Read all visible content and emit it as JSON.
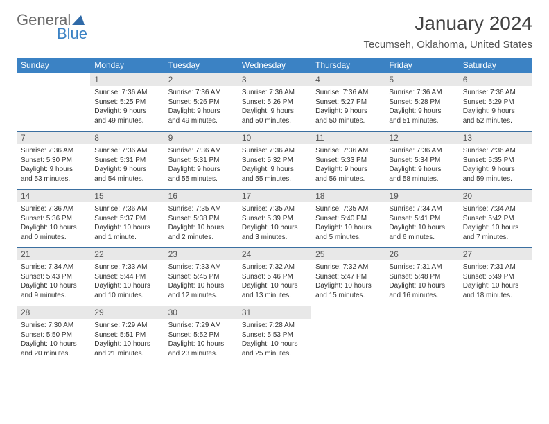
{
  "logo": {
    "text_top": "General",
    "text_bottom": "Blue"
  },
  "title": "January 2024",
  "location": "Tecumseh, Oklahoma, United States",
  "colors": {
    "header_bg": "#3b82c4",
    "header_fg": "#ffffff",
    "daynum_bg": "#e8e8e8",
    "row_border": "#3b6fa0",
    "logo_gray": "#6b6b6b",
    "logo_blue": "#3b82c4",
    "page_bg": "#ffffff"
  },
  "typography": {
    "title_fontsize": 28,
    "location_fontsize": 15,
    "weekday_fontsize": 12,
    "daynum_fontsize": 12,
    "body_fontsize": 10
  },
  "weekdays": [
    "Sunday",
    "Monday",
    "Tuesday",
    "Wednesday",
    "Thursday",
    "Friday",
    "Saturday"
  ],
  "weeks": [
    [
      {
        "day": "",
        "sunrise": "",
        "sunset": "",
        "daylight": ""
      },
      {
        "day": "1",
        "sunrise": "Sunrise: 7:36 AM",
        "sunset": "Sunset: 5:25 PM",
        "daylight": "Daylight: 9 hours and 49 minutes."
      },
      {
        "day": "2",
        "sunrise": "Sunrise: 7:36 AM",
        "sunset": "Sunset: 5:26 PM",
        "daylight": "Daylight: 9 hours and 49 minutes."
      },
      {
        "day": "3",
        "sunrise": "Sunrise: 7:36 AM",
        "sunset": "Sunset: 5:26 PM",
        "daylight": "Daylight: 9 hours and 50 minutes."
      },
      {
        "day": "4",
        "sunrise": "Sunrise: 7:36 AM",
        "sunset": "Sunset: 5:27 PM",
        "daylight": "Daylight: 9 hours and 50 minutes."
      },
      {
        "day": "5",
        "sunrise": "Sunrise: 7:36 AM",
        "sunset": "Sunset: 5:28 PM",
        "daylight": "Daylight: 9 hours and 51 minutes."
      },
      {
        "day": "6",
        "sunrise": "Sunrise: 7:36 AM",
        "sunset": "Sunset: 5:29 PM",
        "daylight": "Daylight: 9 hours and 52 minutes."
      }
    ],
    [
      {
        "day": "7",
        "sunrise": "Sunrise: 7:36 AM",
        "sunset": "Sunset: 5:30 PM",
        "daylight": "Daylight: 9 hours and 53 minutes."
      },
      {
        "day": "8",
        "sunrise": "Sunrise: 7:36 AM",
        "sunset": "Sunset: 5:31 PM",
        "daylight": "Daylight: 9 hours and 54 minutes."
      },
      {
        "day": "9",
        "sunrise": "Sunrise: 7:36 AM",
        "sunset": "Sunset: 5:31 PM",
        "daylight": "Daylight: 9 hours and 55 minutes."
      },
      {
        "day": "10",
        "sunrise": "Sunrise: 7:36 AM",
        "sunset": "Sunset: 5:32 PM",
        "daylight": "Daylight: 9 hours and 55 minutes."
      },
      {
        "day": "11",
        "sunrise": "Sunrise: 7:36 AM",
        "sunset": "Sunset: 5:33 PM",
        "daylight": "Daylight: 9 hours and 56 minutes."
      },
      {
        "day": "12",
        "sunrise": "Sunrise: 7:36 AM",
        "sunset": "Sunset: 5:34 PM",
        "daylight": "Daylight: 9 hours and 58 minutes."
      },
      {
        "day": "13",
        "sunrise": "Sunrise: 7:36 AM",
        "sunset": "Sunset: 5:35 PM",
        "daylight": "Daylight: 9 hours and 59 minutes."
      }
    ],
    [
      {
        "day": "14",
        "sunrise": "Sunrise: 7:36 AM",
        "sunset": "Sunset: 5:36 PM",
        "daylight": "Daylight: 10 hours and 0 minutes."
      },
      {
        "day": "15",
        "sunrise": "Sunrise: 7:36 AM",
        "sunset": "Sunset: 5:37 PM",
        "daylight": "Daylight: 10 hours and 1 minute."
      },
      {
        "day": "16",
        "sunrise": "Sunrise: 7:35 AM",
        "sunset": "Sunset: 5:38 PM",
        "daylight": "Daylight: 10 hours and 2 minutes."
      },
      {
        "day": "17",
        "sunrise": "Sunrise: 7:35 AM",
        "sunset": "Sunset: 5:39 PM",
        "daylight": "Daylight: 10 hours and 3 minutes."
      },
      {
        "day": "18",
        "sunrise": "Sunrise: 7:35 AM",
        "sunset": "Sunset: 5:40 PM",
        "daylight": "Daylight: 10 hours and 5 minutes."
      },
      {
        "day": "19",
        "sunrise": "Sunrise: 7:34 AM",
        "sunset": "Sunset: 5:41 PM",
        "daylight": "Daylight: 10 hours and 6 minutes."
      },
      {
        "day": "20",
        "sunrise": "Sunrise: 7:34 AM",
        "sunset": "Sunset: 5:42 PM",
        "daylight": "Daylight: 10 hours and 7 minutes."
      }
    ],
    [
      {
        "day": "21",
        "sunrise": "Sunrise: 7:34 AM",
        "sunset": "Sunset: 5:43 PM",
        "daylight": "Daylight: 10 hours and 9 minutes."
      },
      {
        "day": "22",
        "sunrise": "Sunrise: 7:33 AM",
        "sunset": "Sunset: 5:44 PM",
        "daylight": "Daylight: 10 hours and 10 minutes."
      },
      {
        "day": "23",
        "sunrise": "Sunrise: 7:33 AM",
        "sunset": "Sunset: 5:45 PM",
        "daylight": "Daylight: 10 hours and 12 minutes."
      },
      {
        "day": "24",
        "sunrise": "Sunrise: 7:32 AM",
        "sunset": "Sunset: 5:46 PM",
        "daylight": "Daylight: 10 hours and 13 minutes."
      },
      {
        "day": "25",
        "sunrise": "Sunrise: 7:32 AM",
        "sunset": "Sunset: 5:47 PM",
        "daylight": "Daylight: 10 hours and 15 minutes."
      },
      {
        "day": "26",
        "sunrise": "Sunrise: 7:31 AM",
        "sunset": "Sunset: 5:48 PM",
        "daylight": "Daylight: 10 hours and 16 minutes."
      },
      {
        "day": "27",
        "sunrise": "Sunrise: 7:31 AM",
        "sunset": "Sunset: 5:49 PM",
        "daylight": "Daylight: 10 hours and 18 minutes."
      }
    ],
    [
      {
        "day": "28",
        "sunrise": "Sunrise: 7:30 AM",
        "sunset": "Sunset: 5:50 PM",
        "daylight": "Daylight: 10 hours and 20 minutes."
      },
      {
        "day": "29",
        "sunrise": "Sunrise: 7:29 AM",
        "sunset": "Sunset: 5:51 PM",
        "daylight": "Daylight: 10 hours and 21 minutes."
      },
      {
        "day": "30",
        "sunrise": "Sunrise: 7:29 AM",
        "sunset": "Sunset: 5:52 PM",
        "daylight": "Daylight: 10 hours and 23 minutes."
      },
      {
        "day": "31",
        "sunrise": "Sunrise: 7:28 AM",
        "sunset": "Sunset: 5:53 PM",
        "daylight": "Daylight: 10 hours and 25 minutes."
      },
      {
        "day": "",
        "sunrise": "",
        "sunset": "",
        "daylight": ""
      },
      {
        "day": "",
        "sunrise": "",
        "sunset": "",
        "daylight": ""
      },
      {
        "day": "",
        "sunrise": "",
        "sunset": "",
        "daylight": ""
      }
    ]
  ]
}
